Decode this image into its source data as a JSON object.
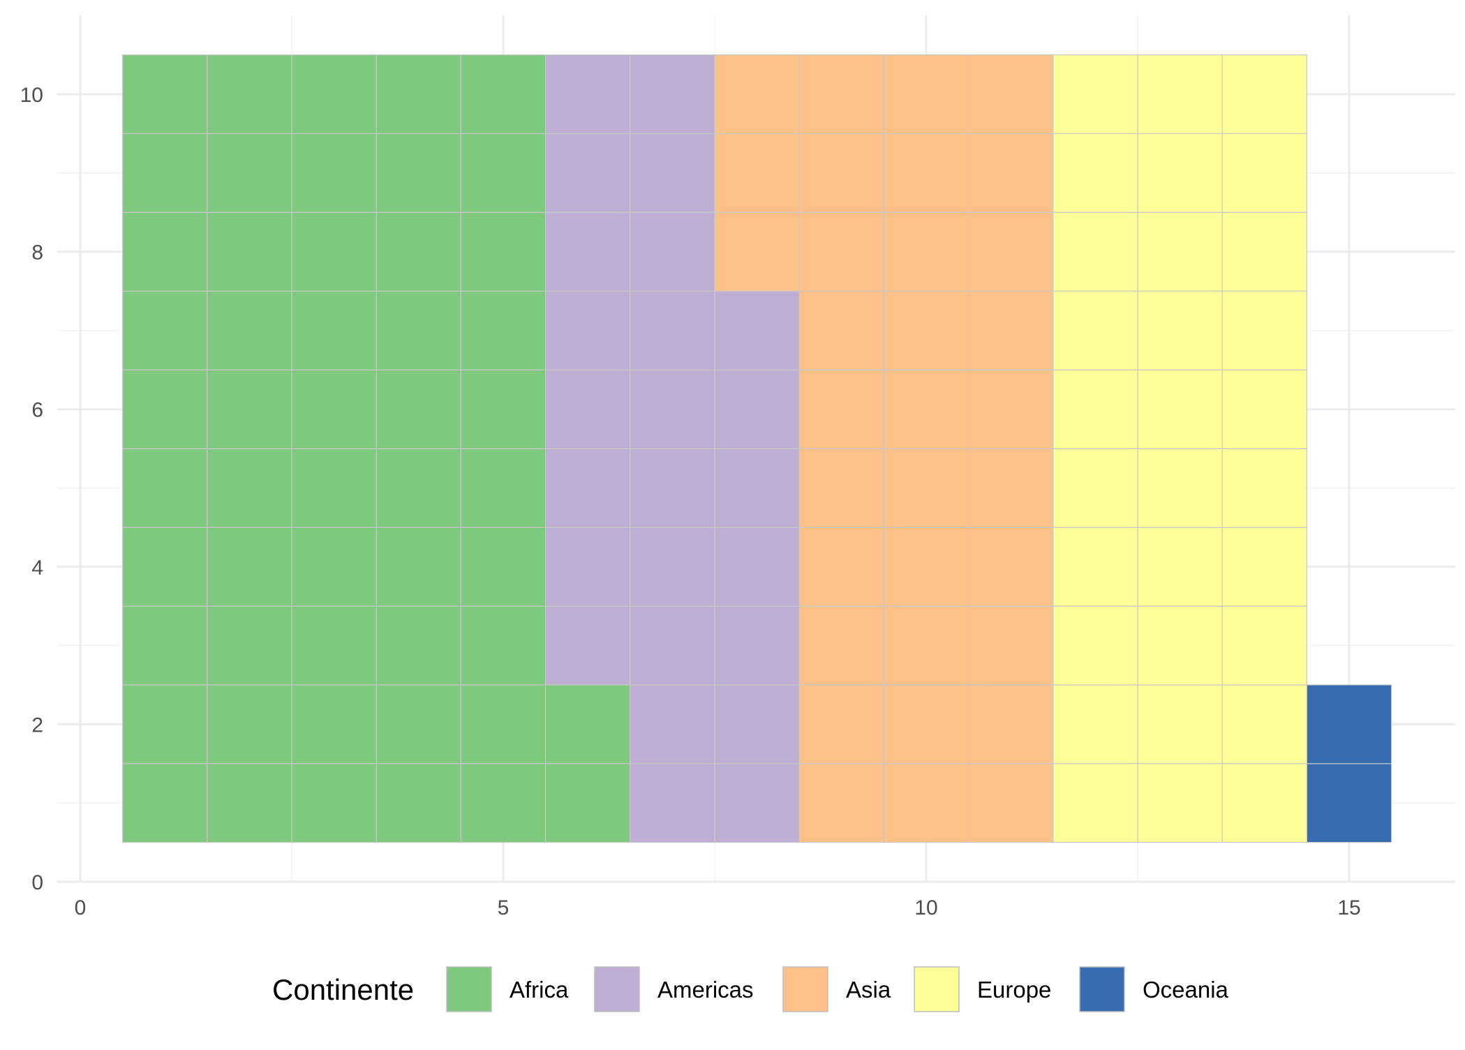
{
  "chart_data": {
    "type": "waffle",
    "xlim": [
      0,
      16.1
    ],
    "ylim": [
      0,
      10.5
    ],
    "x_ticks": [
      0,
      5,
      10,
      15
    ],
    "y_ticks": [
      0,
      2,
      4,
      6,
      8,
      10
    ],
    "x_tick_labels": [
      "0",
      "5",
      "10",
      "15"
    ],
    "y_tick_labels": [
      "0",
      "2",
      "4",
      "6",
      "8",
      "10"
    ],
    "grid": true,
    "legend_position": "bottom",
    "legend_title": "Continente",
    "grid_rows": 10,
    "fill_order": "column-wise, bottom to top",
    "categories": [
      {
        "name": "Africa",
        "count": 52,
        "color": "#7fc97f"
      },
      {
        "name": "Americas",
        "count": 25,
        "color": "#beaed4"
      },
      {
        "name": "Asia",
        "count": 33,
        "color": "#fdc086"
      },
      {
        "name": "Europe",
        "count": 30,
        "color": "#ffff99"
      },
      {
        "name": "Oceania",
        "count": 2,
        "color": "#386cb0"
      }
    ],
    "xlabel": "",
    "ylabel": "",
    "title": ""
  }
}
